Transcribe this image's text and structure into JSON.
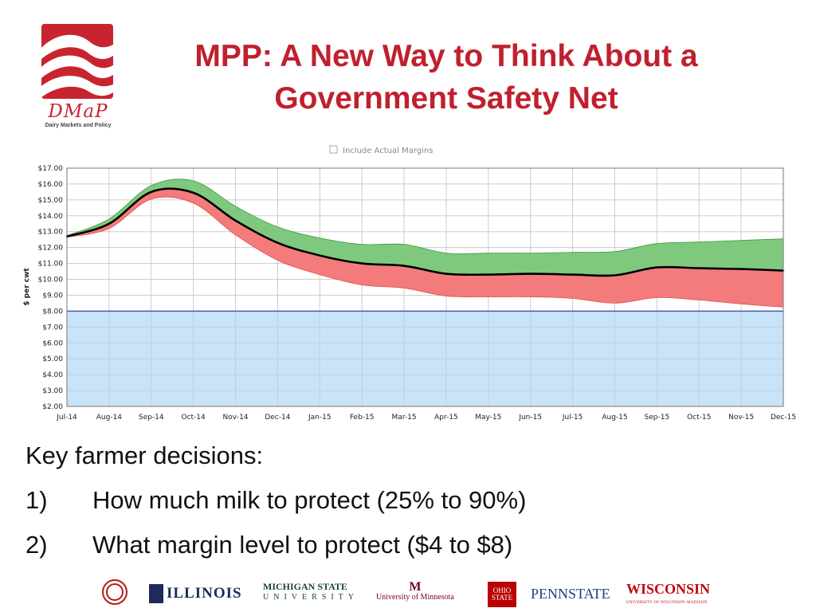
{
  "header": {
    "title_line1": "MPP: A New Way to Think About a",
    "title_line2": "Government Safety Net"
  },
  "logo": {
    "name": "DMaP",
    "subtitle": "Dairy Markets and Policy",
    "color": "#c8242f"
  },
  "chart_data": {
    "type": "area",
    "top_option": "Include Actual Margins",
    "ylabel": "$ per cwt",
    "ylim": [
      2,
      17
    ],
    "y_ticks": [
      "$17.00",
      "$16.00",
      "$15.00",
      "$14.00",
      "$13.00",
      "$12.00",
      "$11.00",
      "$10.00",
      "$9.00",
      "$8.00",
      "$7.00",
      "$6.00",
      "$5.00",
      "$4.00",
      "$3.00",
      "$2.00"
    ],
    "categories": [
      "Jul-14",
      "Aug-14",
      "Sep-14",
      "Oct-14",
      "Nov-14",
      "Dec-14",
      "Jan-15",
      "Feb-15",
      "Mar-15",
      "Apr-15",
      "May-15",
      "Jun-15",
      "Jul-15",
      "Aug-15",
      "Sep-15",
      "Oct-15",
      "Nov-15",
      "Dec-15"
    ],
    "series": [
      {
        "role": "expected",
        "values": [
          12.7,
          13.5,
          15.5,
          15.45,
          13.7,
          12.3,
          11.5,
          11.0,
          10.85,
          10.35,
          10.3,
          10.35,
          10.3,
          10.25,
          10.75,
          10.7,
          10.65,
          10.55
        ]
      },
      {
        "role": "upper",
        "values": [
          12.75,
          13.8,
          15.9,
          16.2,
          14.6,
          13.3,
          12.6,
          12.2,
          12.2,
          11.65,
          11.65,
          11.65,
          11.7,
          11.75,
          12.25,
          12.35,
          12.45,
          12.55
        ]
      },
      {
        "role": "lower",
        "values": [
          12.65,
          13.2,
          15.05,
          14.8,
          12.8,
          11.2,
          10.3,
          9.65,
          9.45,
          8.95,
          8.9,
          8.9,
          8.8,
          8.5,
          8.85,
          8.7,
          8.45,
          8.25
        ]
      },
      {
        "role": "coverage",
        "values": [
          8,
          8,
          8,
          8,
          8,
          8,
          8,
          8,
          8,
          8,
          8,
          8,
          8,
          8,
          8,
          8,
          8,
          8
        ]
      }
    ],
    "colors": {
      "upper_band": "#7fc97f",
      "lower_band": "#f47b7b",
      "coverage_area": "#c8e4f8",
      "coverage_line": "#4a4ab0",
      "expected_line": "#000000",
      "grid": "#cccccc"
    },
    "grid": true
  },
  "bullets": {
    "heading": "Key farmer decisions:",
    "items": [
      {
        "num": "1)",
        "text": "How much milk to protect (25% to 90%)"
      },
      {
        "num": "2)",
        "text": "What margin level to protect ($4 to $8)"
      }
    ]
  },
  "footer": {
    "illinois": "ILLINOIS",
    "msu_line1": "MICHIGAN STATE",
    "msu_line2": "UNIVERSITY",
    "umn": "University of Minnesota",
    "osu_line1": "OHIO",
    "osu_line2": "STATE",
    "psu": "PENNSTATE",
    "wisconsin": "WISCONSIN",
    "wisconsin_sub": "UNIVERSITY OF WISCONSIN–MADISON"
  }
}
